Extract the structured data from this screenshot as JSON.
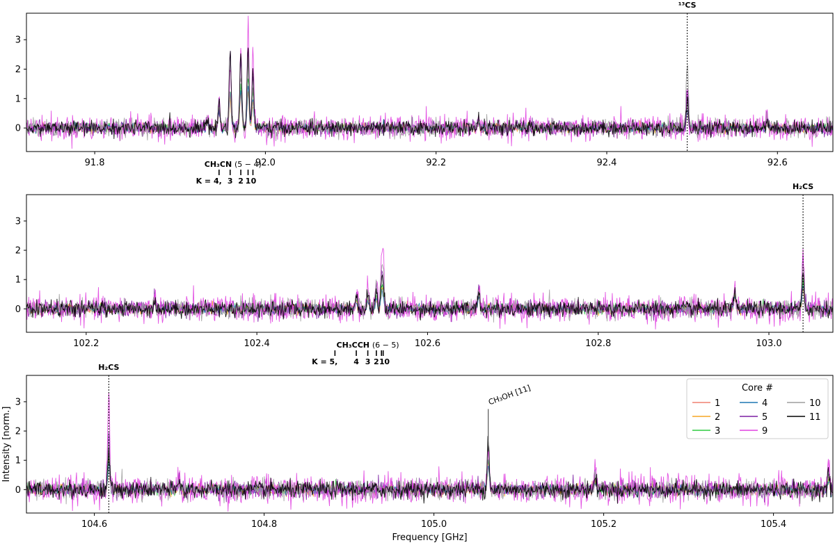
{
  "chart_data": [
    {
      "type": "line",
      "panel": 1,
      "xlim": [
        91.72,
        92.665
      ],
      "ylim": [
        -0.8,
        3.9
      ],
      "xticks": [
        91.8,
        92.0,
        92.2,
        92.4,
        92.6
      ],
      "xtick_labels": [
        "91.8",
        "92.0",
        "92.2",
        "92.4",
        "92.6"
      ],
      "yticks": [
        0,
        1,
        2,
        3
      ],
      "ytick_labels": [
        "0",
        "1",
        "2",
        "3"
      ],
      "xlabel": "",
      "ylabel": "",
      "grid": false,
      "noise_rms": 0.13,
      "lines": [
        {
          "x": 91.9457,
          "amps": [
            0.65,
            0.75,
            0.7,
            0.6,
            0.75,
            0.85,
            0.7,
            0.9
          ]
        },
        {
          "x": 91.9587,
          "amps": [
            1.0,
            1.1,
            1.3,
            1.2,
            2.5,
            2.0,
            1.4,
            2.55
          ]
        },
        {
          "x": 91.9712,
          "amps": [
            1.1,
            1.2,
            1.5,
            1.3,
            2.2,
            2.4,
            1.8,
            2.45
          ]
        },
        {
          "x": 91.9797,
          "amps": [
            1.2,
            1.3,
            1.7,
            1.4,
            2.7,
            3.3,
            2.2,
            2.7
          ]
        },
        {
          "x": 91.9854,
          "amps": [
            0.8,
            0.9,
            1.3,
            1.0,
            1.8,
            2.4,
            1.5,
            1.9
          ]
        },
        {
          "x": 91.932,
          "amps": [
            0.2,
            0.25,
            0.3,
            0.2,
            0.3,
            0.45,
            0.3,
            0.3
          ]
        },
        {
          "x": 92.4943,
          "amps": [
            0.5,
            0.6,
            0.9,
            0.6,
            1.3,
            1.1,
            2.4,
            1.0
          ]
        },
        {
          "x": 92.25,
          "amps": [
            0.15,
            0.2,
            0.2,
            0.15,
            0.3,
            0.35,
            0.2,
            0.25
          ]
        },
        {
          "x": 92.588,
          "amps": [
            0.2,
            0.25,
            0.3,
            0.2,
            0.45,
            0.6,
            0.3,
            0.35
          ]
        }
      ],
      "annotations": [
        {
          "text": "¹³CS",
          "x": 92.4943,
          "marker": "dotted-line"
        },
        {
          "text": "CH₃CN",
          "suffix": "(5 − 4)",
          "x": 91.962
        },
        {
          "text": "K = 4,",
          "x": 91.9457,
          "tick_label": true
        },
        {
          "text": "3",
          "x": 91.9587,
          "tick_label": true
        },
        {
          "text": "2",
          "x": 91.9712,
          "tick_label": true
        },
        {
          "text": "1",
          "x": 91.9797,
          "tick_label": true
        },
        {
          "text": "0",
          "x": 91.9854,
          "tick_label": true
        }
      ]
    },
    {
      "type": "line",
      "panel": 2,
      "xlim": [
        102.13,
        103.075
      ],
      "ylim": [
        -0.8,
        3.9
      ],
      "xticks": [
        102.2,
        102.4,
        102.6,
        102.8,
        103.0
      ],
      "xtick_labels": [
        "102.2",
        "102.4",
        "102.6",
        "102.8",
        "103.0"
      ],
      "yticks": [
        0,
        1,
        2,
        3
      ],
      "ytick_labels": [
        "0",
        "1",
        "2",
        "3"
      ],
      "xlabel": "",
      "ylabel": "",
      "grid": false,
      "noise_rms": 0.14,
      "lines": [
        {
          "x": 102.5165,
          "amps": [
            0.25,
            0.3,
            0.35,
            0.25,
            0.45,
            0.6,
            0.5,
            0.5
          ]
        },
        {
          "x": 102.53,
          "amps": [
            0.3,
            0.35,
            0.4,
            0.3,
            0.6,
            0.85,
            0.6,
            0.55
          ]
        },
        {
          "x": 102.54,
          "amps": [
            0.35,
            0.4,
            0.45,
            0.35,
            0.7,
            1.0,
            0.75,
            0.6
          ]
        },
        {
          "x": 102.546,
          "amps": [
            0.45,
            0.5,
            0.55,
            0.4,
            0.9,
            1.5,
            1.0,
            0.8
          ]
        },
        {
          "x": 102.548,
          "amps": [
            0.45,
            0.5,
            0.55,
            0.4,
            0.9,
            1.9,
            1.2,
            0.8
          ]
        },
        {
          "x": 102.66,
          "amps": [
            0.6,
            0.55,
            0.5,
            0.45,
            0.8,
            0.7,
            0.6,
            0.6
          ]
        },
        {
          "x": 102.96,
          "amps": [
            0.5,
            0.55,
            0.5,
            0.45,
            0.65,
            0.6,
            0.55,
            0.5
          ]
        },
        {
          "x": 103.04,
          "amps": [
            0.7,
            0.8,
            1.0,
            0.8,
            1.7,
            2.0,
            1.3,
            1.1
          ]
        },
        {
          "x": 102.28,
          "amps": [
            0.2,
            0.3,
            0.25,
            0.2,
            0.35,
            0.3,
            0.3,
            0.3
          ]
        }
      ],
      "annotations": [
        {
          "text": "H₂CS",
          "x": 103.04,
          "marker": "dotted-line"
        },
        {
          "text": "CH₃CCH",
          "suffix": "(6 − 5)",
          "x": 102.53
        },
        {
          "text": "K = 5,",
          "x": 102.4915,
          "tick_label": true
        },
        {
          "text": "4",
          "x": 102.5165,
          "tick_label": true
        },
        {
          "text": "3",
          "x": 102.53,
          "tick_label": true
        },
        {
          "text": "2",
          "x": 102.54,
          "tick_label": true
        },
        {
          "text": "1",
          "x": 102.546,
          "tick_label": true
        },
        {
          "text": "0",
          "x": 102.548,
          "tick_label": true
        }
      ]
    },
    {
      "type": "line",
      "panel": 3,
      "xlim": [
        104.52,
        105.47
      ],
      "ylim": [
        -0.8,
        3.9
      ],
      "xticks": [
        104.6,
        104.8,
        105.0,
        105.2,
        105.4
      ],
      "xtick_labels": [
        "104.6",
        "104.8",
        "105.0",
        "105.2",
        "105.4"
      ],
      "yticks": [
        0,
        1,
        2,
        3
      ],
      "ytick_labels": [
        "0",
        "1",
        "2",
        "3"
      ],
      "xlabel": "Frequency [GHz]",
      "ylabel": "Intensity [norm.]",
      "grid": false,
      "noise_rms": 0.15,
      "lines": [
        {
          "x": 104.617,
          "amps": [
            0.8,
            0.9,
            1.2,
            0.9,
            2.0,
            3.2,
            1.6,
            1.3
          ]
        },
        {
          "x": 105.064,
          "amps": [
            0.8,
            0.9,
            1.0,
            0.8,
            1.3,
            1.1,
            1.7,
            1.8
          ]
        },
        {
          "x": 104.7,
          "amps": [
            0.3,
            0.35,
            0.3,
            0.25,
            0.4,
            0.35,
            0.3,
            0.3
          ]
        },
        {
          "x": 105.19,
          "amps": [
            0.3,
            0.35,
            0.3,
            0.3,
            0.6,
            1.0,
            0.4,
            0.4
          ]
        },
        {
          "x": 105.465,
          "amps": [
            0.3,
            0.4,
            0.4,
            0.3,
            0.7,
            1.1,
            0.5,
            0.5
          ]
        }
      ],
      "annotations": [
        {
          "text": "H₂CS",
          "x": 104.617,
          "marker": "dotted-line"
        },
        {
          "text": "CH₃OH [11]",
          "x": 105.064,
          "marker": "solid-tick",
          "marker_top": 2.75
        }
      ],
      "legend": {
        "title": "Core #",
        "placement": "upper right",
        "columns": 3
      }
    }
  ],
  "series": [
    {
      "name": "1",
      "color": "#f08070"
    },
    {
      "name": "2",
      "color": "#f5a623"
    },
    {
      "name": "3",
      "color": "#2ecc40"
    },
    {
      "name": "4",
      "color": "#1f77b4"
    },
    {
      "name": "5",
      "color": "#7b1fa2"
    },
    {
      "name": "9",
      "color": "#e040e0"
    },
    {
      "name": "10",
      "color": "#9e9e9e"
    },
    {
      "name": "11",
      "color": "#000000"
    }
  ]
}
